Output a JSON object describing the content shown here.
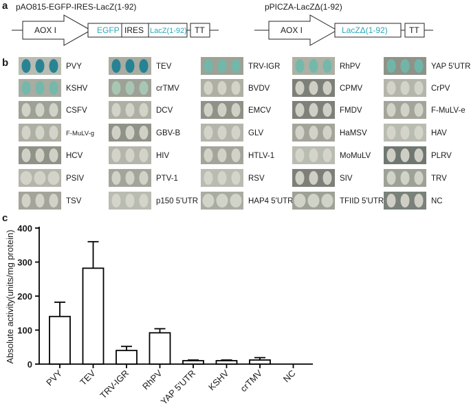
{
  "panel_a": {
    "label": "a",
    "construct1": {
      "title": "pAO815-EGFP-IRES-LacZ(1-92)",
      "promoter": "AOX I",
      "segments": [
        "EGFP",
        "IRES",
        "LacZ(1-92)"
      ],
      "terminator": "TT"
    },
    "construct2": {
      "title": "pPICZA-LacZΔ(1-92)",
      "promoter": "AOX I",
      "gene": "LacZΔ(1-92)",
      "terminator": "TT"
    }
  },
  "panel_b": {
    "label": "b",
    "rows": [
      [
        "PVY",
        "TEV",
        "TRV-IGR",
        "RhPV",
        "YAP  5'UTR"
      ],
      [
        "KSHV",
        "crTMV",
        "BVDV",
        "CPMV",
        "CrPV"
      ],
      [
        "CSFV",
        "DCV",
        "EMCV",
        "FMDV",
        "F-MuLV-e"
      ],
      [
        "F-MuLV-g",
        "GBV-B",
        "GLV",
        "HaMSV",
        "HAV"
      ],
      [
        "HCV",
        "HIV",
        "HTLV-1",
        "MoMuLV",
        "PLRV"
      ],
      [
        "PSIV",
        "PTV-1",
        "RSV",
        "SIV",
        "TRV"
      ],
      [
        "TSV",
        "p150  5'UTR",
        "HAP4  5'UTR",
        "TFIID  5'UTR",
        "NC"
      ]
    ],
    "spot_colors": {
      "strong_blue": "#1c7e92",
      "light_blue": "#6fb8ab",
      "faint_blue": "#a9c9b6",
      "white": "#d6d6cc"
    }
  },
  "panel_c": {
    "label": "c",
    "chart_data": {
      "type": "bar",
      "categories": [
        "PVY",
        "TEV",
        "TRV-IGR",
        "RhPV",
        "YAP 5'UTR",
        "KSHV",
        "crTMV",
        "NC"
      ],
      "values": [
        140,
        282,
        40,
        92,
        10,
        10,
        12,
        0
      ],
      "errors": [
        42,
        78,
        12,
        12,
        2,
        2,
        7,
        0
      ],
      "ylabel": "Absolute activity(units/mg protein)",
      "xlabel": "",
      "ylim": [
        0,
        400
      ],
      "yticks": [
        0,
        100,
        200,
        300,
        400
      ],
      "grid": false
    }
  }
}
